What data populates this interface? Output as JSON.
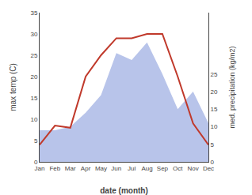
{
  "chart_data": {
    "type": "line",
    "categories": [
      "Jan",
      "Feb",
      "Mar",
      "Apr",
      "May",
      "Jun",
      "Jul",
      "Aug",
      "Sep",
      "Oct",
      "Nov",
      "Dec"
    ],
    "xlabel": "date (month)",
    "ylabel": "max temp (C)",
    "y2label": "med. precipitation (kg/m2)",
    "series": [
      {
        "type": "area",
        "axis": "y2",
        "color": "#b8c4ea",
        "values": [
          9,
          9,
          10,
          14,
          19,
          31,
          29,
          34,
          25,
          15,
          20,
          11
        ]
      },
      {
        "type": "line",
        "color": "#c0392b",
        "values": [
          4,
          8.5,
          8,
          20,
          25,
          29,
          29,
          30,
          30,
          20,
          9,
          4
        ]
      }
    ],
    "ylim": [
      0,
      35
    ],
    "yticks": [
      0,
      5,
      10,
      15,
      20,
      25,
      30,
      35
    ],
    "y2lim": [
      0,
      42.5
    ],
    "y2ticks": [
      0,
      5,
      10,
      15,
      20,
      25
    ],
    "grid": false
  }
}
